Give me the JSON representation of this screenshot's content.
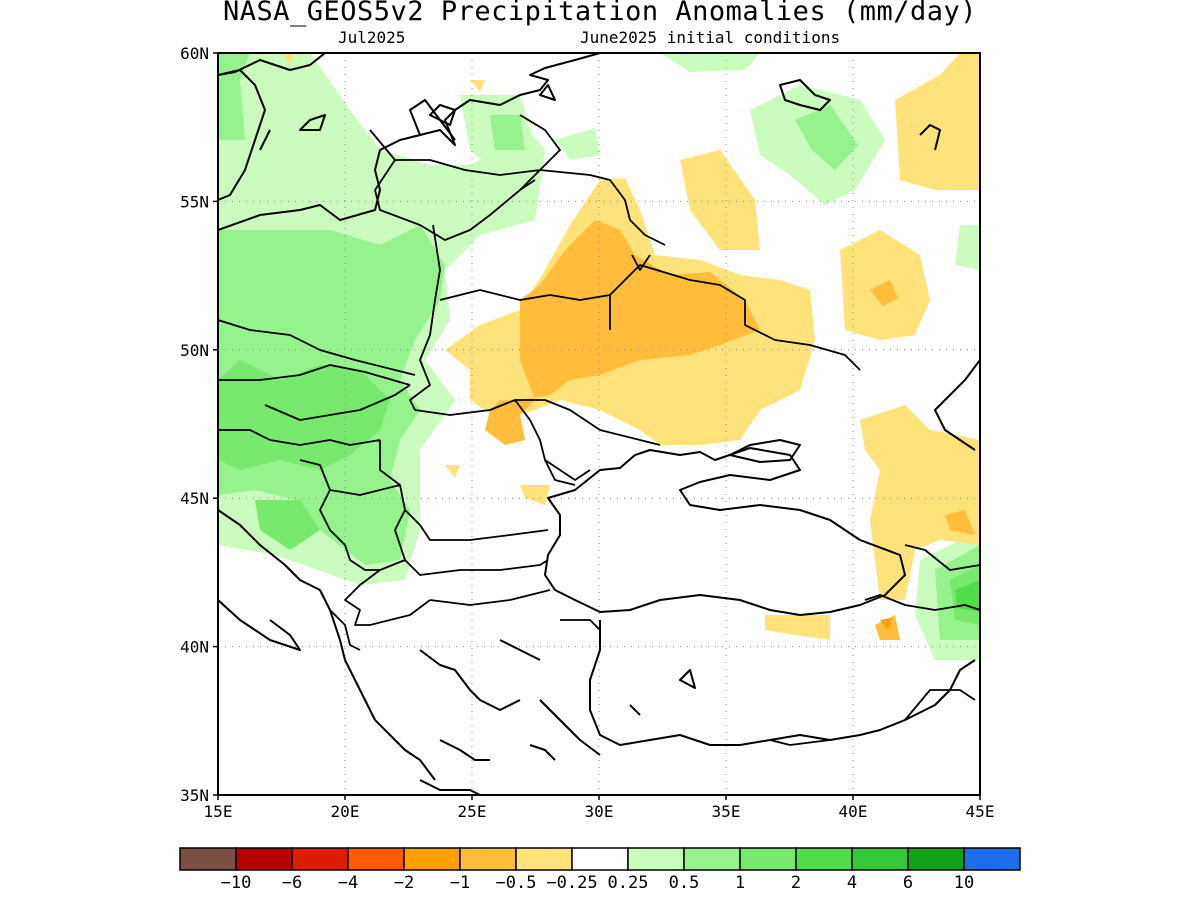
{
  "header": {
    "title": "NASA_GEOS5v2 Precipitation Anomalies (mm/day)",
    "subtitle_left": "Jul2025",
    "subtitle_right": "June2025 initial conditions"
  },
  "map": {
    "lon_range": [
      15,
      45
    ],
    "lat_range": [
      35,
      60
    ],
    "lon_ticks": [
      "15E",
      "20E",
      "25E",
      "30E",
      "35E",
      "40E",
      "45E"
    ],
    "lat_ticks": [
      "35N",
      "40N",
      "45N",
      "50N",
      "55N",
      "60N"
    ],
    "grid": "dotted",
    "region": "Eastern Europe, Black Sea and Anatolia"
  },
  "colorbar": {
    "colors": [
      "#7b4f44",
      "#b40000",
      "#dc1e00",
      "#ff5a00",
      "#ff9f00",
      "#ffbd3b",
      "#ffe37a",
      "#ffffff",
      "#c9fcbd",
      "#96f28c",
      "#78e96e",
      "#50dc4b",
      "#32c83a",
      "#11a11a",
      "#1e6eeb"
    ],
    "labels": [
      "-10",
      "-6",
      "-4",
      "-2",
      "-1",
      "-0.5",
      "-0.25",
      "0.25",
      "0.5",
      "1",
      "2",
      "4",
      "6",
      "10"
    ]
  }
}
